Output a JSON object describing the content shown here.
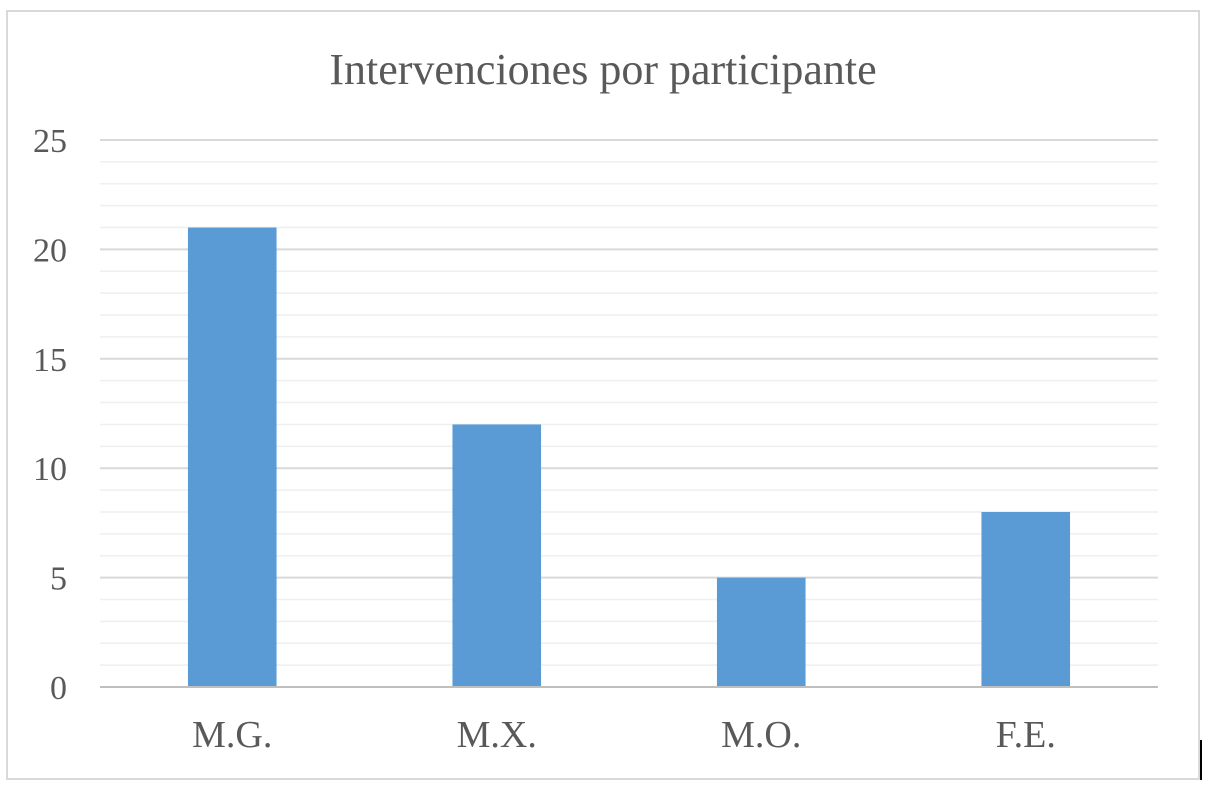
{
  "chart_data": {
    "type": "bar",
    "title": "Intervenciones por participante",
    "xlabel": "",
    "ylabel": "",
    "categories": [
      "M.G.",
      "M.X.",
      "M.O.",
      "F.E."
    ],
    "values": [
      21,
      12,
      5,
      8
    ],
    "ylim": [
      0,
      25
    ],
    "yticks": [
      0,
      5,
      10,
      15,
      20,
      25
    ],
    "minor_step": 1,
    "grid": true,
    "legend": "none",
    "bar_color": "#5b9bd5",
    "gridline_color": "#d9d9d9",
    "minor_gridline_color": "#efefef",
    "axis_color": "#bfbfbf"
  }
}
